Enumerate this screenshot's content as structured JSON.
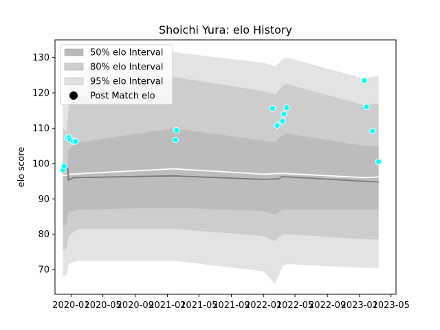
{
  "chart_data": {
    "type": "area",
    "title": "Shoichi Yura: elo History",
    "xlabel": "",
    "ylabel": "elo score",
    "xlim": [
      "2019-11-01",
      "2023-05-20"
    ],
    "ylim": [
      63,
      135
    ],
    "yticks": [
      70,
      80,
      90,
      100,
      110,
      120,
      130
    ],
    "xticks": [
      "2020-01",
      "2020-05",
      "2020-09",
      "2021-01",
      "2021-05",
      "2021-09",
      "2022-01",
      "2022-05",
      "2022-09",
      "2023-01",
      "2023-05"
    ],
    "grid": false,
    "legend_position": "top-left",
    "legend": [
      {
        "label": "50% elo Interval",
        "color": "#b3b3b3"
      },
      {
        "label": "80% elo Interval",
        "color": "#c9c9c9"
      },
      {
        "label": "95% elo Interval",
        "color": "#e3e3e3"
      },
      {
        "label": "Post Match elo",
        "color": "#000000"
      }
    ],
    "bands": {
      "dates": [
        "2019-12-01",
        "2019-12-15",
        "2019-12-23",
        "2020-01-05",
        "2020-02-01",
        "2021-01-25",
        "2022-01-01",
        "2022-02-15",
        "2022-03-15",
        "2022-04-01",
        "2023-01-20",
        "2023-03-15"
      ],
      "p95_low": [
        68,
        68.5,
        71.5,
        72,
        72.5,
        72.5,
        69.5,
        66,
        71,
        71.5,
        70.5,
        70.5
      ],
      "p95_high": [
        117,
        116,
        124,
        126,
        127,
        131.5,
        128.5,
        127.5,
        129.5,
        130,
        124,
        125
      ],
      "p80_low": [
        75.5,
        76,
        79.5,
        80.5,
        81.5,
        81.5,
        79.5,
        78,
        80,
        80,
        78.5,
        78.5
      ],
      "p80_high": [
        110,
        109,
        116,
        117.5,
        119,
        124.5,
        120.5,
        119.5,
        122,
        122.5,
        116.5,
        117
      ],
      "p50_low": [
        82,
        83,
        86.5,
        86.5,
        87,
        87.5,
        86.5,
        85.5,
        87,
        87,
        87,
        87
      ],
      "p50_high": [
        99,
        98,
        104,
        105,
        106,
        110,
        106.5,
        106,
        108,
        108.5,
        105,
        105
      ]
    },
    "mean_line": {
      "dates": [
        "2019-12-01",
        "2019-12-20",
        "2019-12-22",
        "2020-01-10",
        "2021-01-25",
        "2022-01-01",
        "2022-03-01",
        "2022-03-12",
        "2023-01-20",
        "2023-03-15"
      ],
      "values": [
        98.5,
        98.5,
        95.3,
        96,
        96.5,
        95.5,
        95.7,
        96.3,
        95,
        94.8
      ]
    },
    "upper_line": {
      "dates": [
        "2019-12-01",
        "2020-01-01",
        "2021-01-25",
        "2022-01-01",
        "2022-03-15",
        "2023-01-20",
        "2023-03-15"
      ],
      "values": [
        96.5,
        97,
        98.5,
        97,
        97.2,
        96,
        96.2
      ]
    },
    "points": [
      {
        "date": "2019-12-02",
        "elo": 98.2
      },
      {
        "date": "2019-12-06",
        "elo": 99.3
      },
      {
        "date": "2019-12-18",
        "elo": 107.3
      },
      {
        "date": "2019-12-24",
        "elo": 107.4
      },
      {
        "date": "2019-12-29",
        "elo": 106.7
      },
      {
        "date": "2020-01-10",
        "elo": 106.3
      },
      {
        "date": "2020-01-18",
        "elo": 106.3
      },
      {
        "date": "2021-02-01",
        "elo": 106.7
      },
      {
        "date": "2021-02-05",
        "elo": 109.4
      },
      {
        "date": "2022-02-05",
        "elo": 115.6
      },
      {
        "date": "2022-02-22",
        "elo": 110.8
      },
      {
        "date": "2022-03-15",
        "elo": 112.0
      },
      {
        "date": "2022-03-20",
        "elo": 114.0
      },
      {
        "date": "2022-03-30",
        "elo": 115.8
      },
      {
        "date": "2023-01-20",
        "elo": 123.5
      },
      {
        "date": "2023-01-28",
        "elo": 116.0
      },
      {
        "date": "2023-02-20",
        "elo": 109.2
      },
      {
        "date": "2023-03-15",
        "elo": 100.5
      }
    ]
  }
}
